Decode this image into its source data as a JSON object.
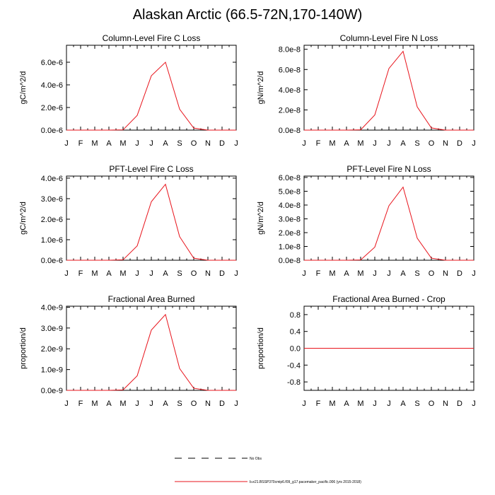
{
  "page_title": "Alaskan Arctic (66.5-72N,170-140W)",
  "line_color": "#e8141c",
  "legend": {
    "items": [
      {
        "label": "No Obs",
        "style": "dashed",
        "color": "#000000"
      },
      {
        "label": "b.e21.BSSP370cmip6.f09_g17.pacemaker_pacific.006 (yrs 2015-2018)",
        "style": "solid",
        "color": "#e8141c"
      }
    ]
  },
  "chart_data": [
    {
      "type": "line",
      "title": "Column-Level Fire C Loss",
      "ylabel": "gC/m^2/d",
      "x": [
        "J",
        "F",
        "M",
        "A",
        "M",
        "J",
        "J",
        "A",
        "S",
        "O",
        "N",
        "D",
        "J"
      ],
      "ylim": [
        0,
        7.5e-06
      ],
      "yticks": [
        "0.0e-6",
        "2.0e-6",
        "4.0e-6",
        "6.0e-6"
      ],
      "ytick_values": [
        0,
        2e-06,
        4e-06,
        6e-06
      ],
      "series": [
        {
          "name": "b.e21.BSSP370cmip6.f09_g17.pacemaker_pacific.006 (yrs 2015-2018)",
          "values": [
            0,
            0,
            0,
            0,
            2e-08,
            1.3e-06,
            4.8e-06,
            6e-06,
            1.85e-06,
            1.8e-07,
            0,
            0,
            0
          ]
        }
      ]
    },
    {
      "type": "line",
      "title": "Column-Level Fire N Loss",
      "ylabel": "gN/m^2/d",
      "x": [
        "J",
        "F",
        "M",
        "A",
        "M",
        "J",
        "J",
        "A",
        "S",
        "O",
        "N",
        "D",
        "J"
      ],
      "ylim": [
        0,
        8.4e-08
      ],
      "yticks": [
        "0.0e-8",
        "2.0e-8",
        "4.0e-8",
        "6.0e-8",
        "8.0e-8"
      ],
      "ytick_values": [
        0,
        2e-08,
        4e-08,
        6e-08,
        8e-08
      ],
      "series": [
        {
          "name": "b.e21.BSSP370cmip6.f09_g17.pacemaker_pacific.006 (yrs 2015-2018)",
          "values": [
            0,
            0,
            0,
            0,
            3e-10,
            1.5e-08,
            6.1e-08,
            7.8e-08,
            2.3e-08,
            2.2e-09,
            0,
            0,
            0
          ]
        }
      ]
    },
    {
      "type": "line",
      "title": "PFT-Level Fire C Loss",
      "ylabel": "gC/m^2/d",
      "x": [
        "J",
        "F",
        "M",
        "A",
        "M",
        "J",
        "J",
        "A",
        "S",
        "O",
        "N",
        "D",
        "J"
      ],
      "ylim": [
        0,
        4.1e-06
      ],
      "yticks": [
        "0.0e-6",
        "1.0e-6",
        "2.0e-6",
        "3.0e-6",
        "4.0e-6"
      ],
      "ytick_values": [
        0,
        1e-06,
        2e-06,
        3e-06,
        4e-06
      ],
      "series": [
        {
          "name": "b.e21.BSSP370cmip6.f09_g17.pacemaker_pacific.006 (yrs 2015-2018)",
          "values": [
            0,
            0,
            0,
            0,
            2e-08,
            7e-07,
            2.85e-06,
            3.7e-06,
            1.15e-06,
            1e-07,
            0,
            0,
            0
          ]
        }
      ]
    },
    {
      "type": "line",
      "title": "PFT-Level Fire N Loss",
      "ylabel": "gN/m^2/d",
      "x": [
        "J",
        "F",
        "M",
        "A",
        "M",
        "J",
        "J",
        "A",
        "S",
        "O",
        "N",
        "D",
        "J"
      ],
      "ylim": [
        0,
        6.1e-08
      ],
      "yticks": [
        "0.0e-8",
        "1.0e-8",
        "2.0e-8",
        "3.0e-8",
        "4.0e-8",
        "5.0e-8",
        "6.0e-8"
      ],
      "ytick_values": [
        0,
        1e-08,
        2e-08,
        3e-08,
        4e-08,
        5e-08,
        6e-08
      ],
      "series": [
        {
          "name": "b.e21.BSSP370cmip6.f09_g17.pacemaker_pacific.006 (yrs 2015-2018)",
          "values": [
            0,
            0,
            0,
            0,
            2e-10,
            9.5e-09,
            3.95e-08,
            5.3e-08,
            1.6e-08,
            1.5e-09,
            0,
            0,
            0
          ]
        }
      ]
    },
    {
      "type": "line",
      "title": "Fractional Area Burned",
      "ylabel": "proportion/d",
      "x": [
        "J",
        "F",
        "M",
        "A",
        "M",
        "J",
        "J",
        "A",
        "S",
        "O",
        "N",
        "D",
        "J"
      ],
      "ylim": [
        0,
        4.05e-09
      ],
      "yticks": [
        "0.0e-9",
        "1.0e-9",
        "2.0e-9",
        "3.0e-9",
        "4.0e-9"
      ],
      "ytick_values": [
        0,
        1e-09,
        2e-09,
        3e-09,
        4e-09
      ],
      "series": [
        {
          "name": "b.e21.BSSP370cmip6.f09_g17.pacemaker_pacific.006 (yrs 2015-2018)",
          "values": [
            0,
            0,
            0,
            0,
            2e-11,
            7e-10,
            2.9e-09,
            3.65e-09,
            1.05e-09,
            1e-10,
            0,
            0,
            0
          ]
        }
      ]
    },
    {
      "type": "line",
      "title": "Fractional Area Burned - Crop",
      "ylabel": "proportion/d",
      "x": [
        "J",
        "F",
        "M",
        "A",
        "M",
        "J",
        "J",
        "A",
        "S",
        "O",
        "N",
        "D",
        "J"
      ],
      "ylim": [
        -1.0,
        1.0
      ],
      "yticks": [
        "-0.8",
        "-0.4",
        "0.0",
        "0.4",
        "0.8"
      ],
      "ytick_values": [
        -0.8,
        -0.4,
        0,
        0.4,
        0.8
      ],
      "series": [
        {
          "name": "b.e21.BSSP370cmip6.f09_g17.pacemaker_pacific.006 (yrs 2015-2018)",
          "values": [
            0,
            0,
            0,
            0,
            0,
            0,
            0,
            0,
            0,
            0,
            0,
            0,
            0
          ]
        }
      ]
    }
  ]
}
